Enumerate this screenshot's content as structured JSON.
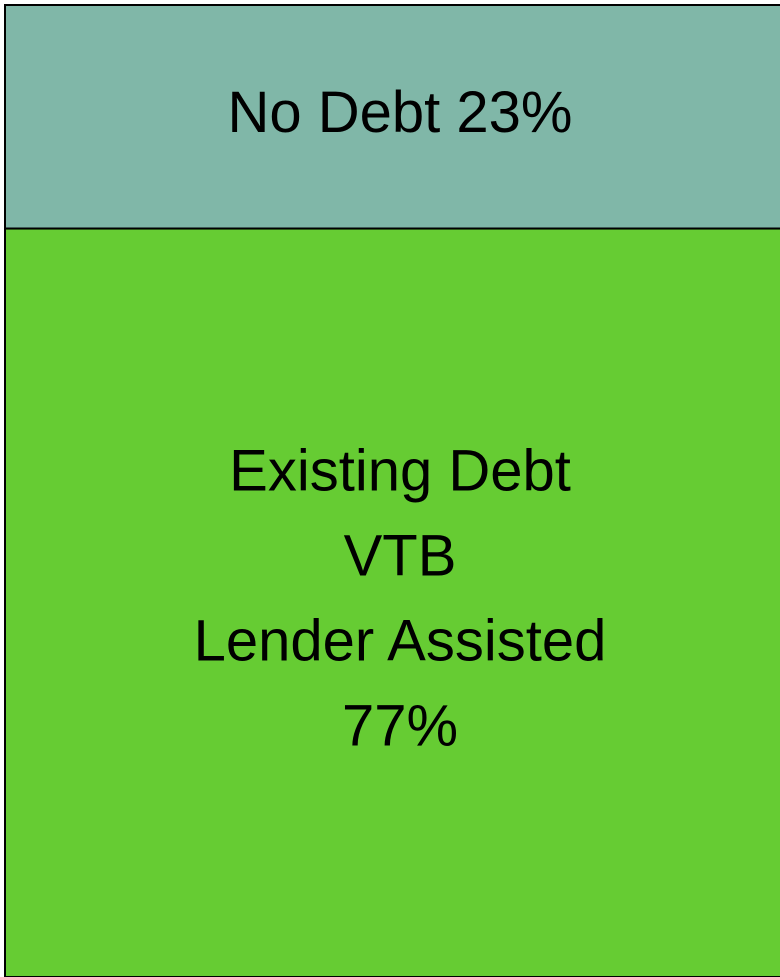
{
  "chart_data": {
    "type": "stacked-bar",
    "series": [
      {
        "name": "No Debt",
        "color": "#80b7a8",
        "values": [
          23
        ],
        "value_labels": [
          "23%"
        ]
      },
      {
        "label_lines": [
          "Existing Debt",
          "VTB",
          "Lender Assisted"
        ],
        "color": "#66cc33",
        "values": [
          77
        ],
        "value_labels": [
          "77%"
        ]
      }
    ]
  }
}
